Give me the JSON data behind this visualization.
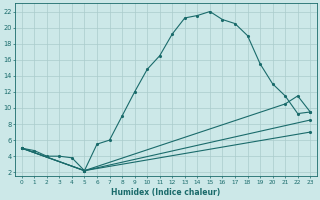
{
  "xlabel": "Humidex (Indice chaleur)",
  "bg_color": "#cce8e8",
  "grid_color": "#b0d4d4",
  "line_color": "#1a6b6b",
  "xlim": [
    -0.5,
    23.5
  ],
  "ylim": [
    1.5,
    23
  ],
  "xticks": [
    0,
    1,
    2,
    3,
    4,
    5,
    6,
    7,
    8,
    9,
    10,
    11,
    12,
    13,
    14,
    15,
    16,
    17,
    18,
    19,
    20,
    21,
    22,
    23
  ],
  "yticks": [
    2,
    4,
    6,
    8,
    10,
    12,
    14,
    16,
    18,
    20,
    22
  ],
  "line1_x": [
    0,
    1,
    2,
    3,
    4,
    5,
    6,
    7,
    8,
    9,
    10,
    11,
    12,
    13,
    14,
    15,
    16,
    17,
    18,
    19,
    20,
    21,
    22,
    23
  ],
  "line1_y": [
    5,
    4.7,
    4,
    4,
    3.8,
    2.2,
    5.5,
    6,
    9,
    12,
    14.8,
    16.5,
    19.2,
    21.2,
    21.5,
    22,
    21,
    20.5,
    19,
    15.5,
    13,
    11.5,
    9.3,
    9.5
  ],
  "line2_x": [
    0,
    5,
    21,
    22,
    23
  ],
  "line2_y": [
    5,
    2.2,
    10.5,
    11.5,
    9.5
  ],
  "line3_x": [
    0,
    5,
    23
  ],
  "line3_y": [
    5,
    2.2,
    8.5
  ],
  "line4_x": [
    0,
    5,
    23
  ],
  "line4_y": [
    5,
    2.2,
    7.0
  ]
}
